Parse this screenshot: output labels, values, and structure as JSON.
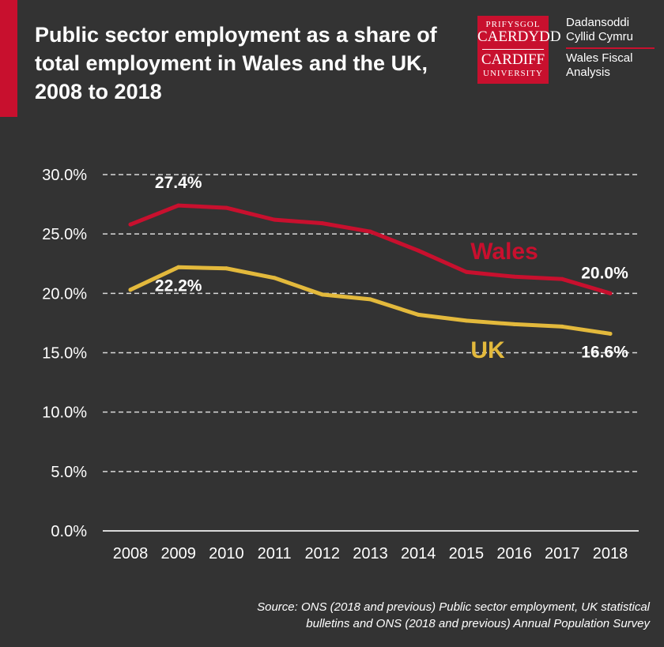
{
  "header": {
    "title": "Public sector employment as a share of total employment in Wales and the UK, 2008 to 2018"
  },
  "logo": {
    "line1": "PRIFYSGOL",
    "line2": "CAERDYDD",
    "line3": "CARDIFF",
    "line4": "UNIVERSITY",
    "brand_color": "#c8102e"
  },
  "wfa": {
    "welsh_line1": "Dadansoddi",
    "welsh_line2": "Cyllid Cymru",
    "english_line1": "Wales Fiscal",
    "english_line2": "Analysis"
  },
  "source": {
    "line1": "Source: ONS (2018 and previous) Public sector employment, UK statistical",
    "line2": "bulletins and ONS (2018 and previous) Annual Population Survey"
  },
  "chart_data": {
    "type": "line",
    "title": "Public sector employment as a share of total employment in Wales and the UK, 2008 to 2018",
    "categories": [
      "2008",
      "2009",
      "2010",
      "2011",
      "2012",
      "2013",
      "2014",
      "2015",
      "2016",
      "2017",
      "2018"
    ],
    "ylim": [
      0,
      30
    ],
    "yticks": [
      "0.0%",
      "5.0%",
      "10.0%",
      "15.0%",
      "20.0%",
      "25.0%",
      "30.0%"
    ],
    "grid": true,
    "background": "#333333",
    "series": [
      {
        "name": "Wales",
        "color": "#c8102e",
        "values": [
          25.8,
          27.4,
          27.2,
          26.2,
          25.9,
          25.2,
          23.6,
          21.8,
          21.4,
          21.2,
          20.0
        ]
      },
      {
        "name": "UK",
        "color": "#e3b93c",
        "values": [
          20.3,
          22.2,
          22.1,
          21.3,
          19.9,
          19.5,
          18.2,
          17.7,
          17.4,
          17.2,
          16.6
        ]
      }
    ],
    "annotations": [
      {
        "series": 0,
        "index": 1,
        "text": "27.4%"
      },
      {
        "series": 0,
        "index": 10,
        "text": "20.0%"
      },
      {
        "series": 1,
        "index": 1,
        "text": "22.2%"
      },
      {
        "series": 1,
        "index": 10,
        "text": "16.6%"
      }
    ]
  }
}
